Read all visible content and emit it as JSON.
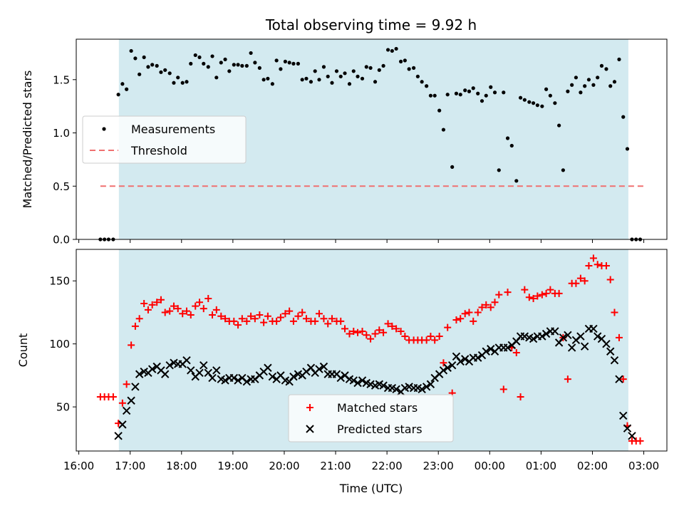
{
  "chart_data": [
    {
      "type": "scatter",
      "title": "Total observing time = 9.92 h",
      "ylabel": "Matched/Predicted stars",
      "xlabel": "",
      "xlim": [
        15.95,
        27.45
      ],
      "ylim": [
        0,
        1.88
      ],
      "yticks": [
        0.0,
        0.5,
        1.0,
        1.5
      ],
      "ytick_labels": [
        "0.0",
        "0.5",
        "1.0",
        "1.5"
      ],
      "shaded_interval": [
        16.78,
        26.7
      ],
      "shade_color": "#d3eaf0",
      "grid": false,
      "legend_position": "center-left",
      "series": [
        {
          "name": "Measurements",
          "style": "point",
          "color": "#000000",
          "x": [
            16.42,
            16.5,
            16.58,
            16.67,
            16.77,
            16.85,
            16.93,
            17.02,
            17.1,
            17.18,
            17.27,
            17.35,
            17.43,
            17.52,
            17.6,
            17.68,
            17.77,
            17.85,
            17.93,
            18.02,
            18.1,
            18.18,
            18.27,
            18.35,
            18.43,
            18.52,
            18.6,
            18.68,
            18.77,
            18.85,
            18.93,
            19.02,
            19.1,
            19.18,
            19.27,
            19.35,
            19.43,
            19.52,
            19.6,
            19.68,
            19.77,
            19.85,
            19.93,
            20.02,
            20.1,
            20.18,
            20.27,
            20.35,
            20.43,
            20.52,
            20.6,
            20.68,
            20.77,
            20.85,
            20.93,
            21.02,
            21.1,
            21.18,
            21.27,
            21.35,
            21.43,
            21.52,
            21.6,
            21.68,
            21.77,
            21.85,
            21.93,
            22.02,
            22.1,
            22.18,
            22.27,
            22.35,
            22.43,
            22.52,
            22.6,
            22.68,
            22.77,
            22.85,
            22.93,
            23.02,
            23.1,
            23.18,
            23.27,
            23.35,
            23.43,
            23.52,
            23.6,
            23.68,
            23.77,
            23.85,
            23.93,
            24.02,
            24.1,
            24.18,
            24.27,
            24.35,
            24.43,
            24.52,
            24.6,
            24.68,
            24.77,
            24.85,
            24.93,
            25.02,
            25.1,
            25.18,
            25.27,
            25.35,
            25.43,
            25.52,
            25.6,
            25.68,
            25.77,
            25.85,
            25.93,
            26.02,
            26.1,
            26.18,
            26.27,
            26.35,
            26.43,
            26.52,
            26.6,
            26.68,
            26.77,
            26.85,
            26.93
          ],
          "y": [
            0,
            0,
            0,
            0,
            1.36,
            1.46,
            1.41,
            1.77,
            1.7,
            1.55,
            1.71,
            1.62,
            1.64,
            1.63,
            1.57,
            1.59,
            1.56,
            1.47,
            1.52,
            1.47,
            1.48,
            1.65,
            1.73,
            1.71,
            1.65,
            1.62,
            1.72,
            1.52,
            1.66,
            1.69,
            1.58,
            1.64,
            1.64,
            1.63,
            1.63,
            1.75,
            1.66,
            1.61,
            1.5,
            1.51,
            1.46,
            1.68,
            1.6,
            1.67,
            1.66,
            1.65,
            1.65,
            1.5,
            1.51,
            1.48,
            1.58,
            1.5,
            1.62,
            1.53,
            1.47,
            1.58,
            1.53,
            1.56,
            1.46,
            1.58,
            1.53,
            1.51,
            1.62,
            1.61,
            1.48,
            1.59,
            1.63,
            1.78,
            1.77,
            1.79,
            1.67,
            1.68,
            1.6,
            1.61,
            1.53,
            1.48,
            1.44,
            1.35,
            1.35,
            1.21,
            1.03,
            1.36,
            0.68,
            1.37,
            1.36,
            1.4,
            1.39,
            1.42,
            1.37,
            1.3,
            1.35,
            1.43,
            1.38,
            0.65,
            1.38,
            0.95,
            0.88,
            0.55,
            1.33,
            1.31,
            1.29,
            1.28,
            1.26,
            1.25,
            1.41,
            1.35,
            1.28,
            1.07,
            0.65,
            1.39,
            1.45,
            1.52,
            1.38,
            1.44,
            1.5,
            1.45,
            1.52,
            1.63,
            1.6,
            1.44,
            1.48,
            1.69,
            1.15,
            0.85,
            0,
            0,
            0
          ]
        },
        {
          "name": "Threshold",
          "style": "dashed-line",
          "color": "#f07070",
          "x": [
            16.42,
            27.0
          ],
          "y": [
            0.5,
            0.5
          ]
        }
      ]
    },
    {
      "type": "scatter",
      "title": "",
      "ylabel": "Count",
      "xlabel": "Time (UTC)",
      "xlim": [
        15.95,
        27.45
      ],
      "ylim": [
        15,
        175
      ],
      "yticks": [
        50,
        100,
        150
      ],
      "ytick_labels": [
        "50",
        "100",
        "150"
      ],
      "xticks": [
        16,
        17,
        18,
        19,
        20,
        21,
        22,
        23,
        24,
        25,
        26,
        27
      ],
      "xtick_labels": [
        "16:00",
        "17:00",
        "18:00",
        "19:00",
        "20:00",
        "21:00",
        "22:00",
        "23:00",
        "00:00",
        "01:00",
        "02:00",
        "03:00"
      ],
      "shaded_interval": [
        16.78,
        26.7
      ],
      "shade_color": "#d3eaf0",
      "grid": false,
      "legend_position": "bottom-center",
      "series": [
        {
          "name": "Matched stars",
          "style": "plus",
          "color": "#ff0000",
          "x": [
            16.42,
            16.5,
            16.58,
            16.67,
            16.77,
            16.85,
            16.93,
            17.02,
            17.1,
            17.18,
            17.27,
            17.35,
            17.43,
            17.52,
            17.6,
            17.68,
            17.77,
            17.85,
            17.93,
            18.02,
            18.1,
            18.18,
            18.27,
            18.35,
            18.43,
            18.52,
            18.6,
            18.68,
            18.77,
            18.85,
            18.93,
            19.02,
            19.1,
            19.18,
            19.27,
            19.35,
            19.43,
            19.52,
            19.6,
            19.68,
            19.77,
            19.85,
            19.93,
            20.02,
            20.1,
            20.18,
            20.27,
            20.35,
            20.43,
            20.52,
            20.6,
            20.68,
            20.77,
            20.85,
            20.93,
            21.02,
            21.1,
            21.18,
            21.27,
            21.35,
            21.43,
            21.52,
            21.6,
            21.68,
            21.77,
            21.85,
            21.93,
            22.02,
            22.1,
            22.18,
            22.27,
            22.35,
            22.43,
            22.52,
            22.6,
            22.68,
            22.77,
            22.85,
            22.93,
            23.02,
            23.1,
            23.18,
            23.27,
            23.35,
            23.43,
            23.52,
            23.6,
            23.68,
            23.77,
            23.85,
            23.93,
            24.02,
            24.1,
            24.18,
            24.27,
            24.35,
            24.43,
            24.52,
            24.6,
            24.68,
            24.77,
            24.85,
            24.93,
            25.02,
            25.1,
            25.18,
            25.27,
            25.35,
            25.43,
            25.52,
            25.6,
            25.68,
            25.77,
            25.85,
            25.93,
            26.02,
            26.1,
            26.18,
            26.27,
            26.35,
            26.43,
            26.52,
            26.6,
            26.68,
            26.77,
            26.85,
            26.93
          ],
          "y": [
            58,
            58,
            58,
            58,
            37,
            53,
            68,
            99,
            114,
            120,
            132,
            127,
            131,
            133,
            135,
            125,
            126,
            130,
            128,
            124,
            126,
            123,
            130,
            133,
            128,
            136,
            123,
            127,
            122,
            120,
            118,
            118,
            115,
            120,
            118,
            122,
            120,
            123,
            117,
            122,
            118,
            118,
            121,
            124,
            126,
            118,
            122,
            125,
            120,
            118,
            118,
            124,
            120,
            116,
            120,
            118,
            118,
            112,
            108,
            110,
            109,
            110,
            107,
            104,
            108,
            111,
            109,
            116,
            114,
            112,
            110,
            106,
            103,
            103,
            103,
            103,
            103,
            106,
            103,
            106,
            85,
            113,
            61,
            119,
            120,
            124,
            125,
            118,
            125,
            129,
            131,
            129,
            133,
            139,
            64,
            141,
            97,
            93,
            58,
            143,
            137,
            136,
            138,
            139,
            140,
            143,
            140,
            140,
            105,
            72,
            148,
            148,
            152,
            150,
            162,
            168,
            163,
            162,
            162,
            151,
            125,
            105,
            72,
            35,
            23,
            23,
            23
          ]
        },
        {
          "name": "Predicted stars",
          "style": "x",
          "color": "#000000",
          "x": [
            16.77,
            16.85,
            16.93,
            17.02,
            17.1,
            17.18,
            17.27,
            17.35,
            17.43,
            17.52,
            17.6,
            17.68,
            17.77,
            17.85,
            17.93,
            18.02,
            18.1,
            18.18,
            18.27,
            18.35,
            18.43,
            18.52,
            18.6,
            18.68,
            18.77,
            18.85,
            18.93,
            19.02,
            19.1,
            19.18,
            19.27,
            19.35,
            19.43,
            19.52,
            19.6,
            19.68,
            19.77,
            19.85,
            19.93,
            20.02,
            20.1,
            20.18,
            20.27,
            20.35,
            20.43,
            20.52,
            20.6,
            20.68,
            20.77,
            20.85,
            20.93,
            21.02,
            21.1,
            21.18,
            21.27,
            21.35,
            21.43,
            21.52,
            21.6,
            21.68,
            21.77,
            21.85,
            21.93,
            22.02,
            22.1,
            22.18,
            22.27,
            22.35,
            22.43,
            22.52,
            22.6,
            22.68,
            22.77,
            22.85,
            22.93,
            23.02,
            23.1,
            23.18,
            23.27,
            23.35,
            23.43,
            23.52,
            23.6,
            23.68,
            23.77,
            23.85,
            23.93,
            24.02,
            24.1,
            24.18,
            24.27,
            24.35,
            24.43,
            24.52,
            24.6,
            24.68,
            24.77,
            24.85,
            24.93,
            25.02,
            25.1,
            25.18,
            25.27,
            25.35,
            25.43,
            25.52,
            25.6,
            25.68,
            25.77,
            25.85,
            25.93,
            26.02,
            26.1,
            26.18,
            26.27,
            26.35,
            26.43,
            26.52,
            26.6,
            26.68,
            26.77
          ],
          "y": [
            27,
            36,
            47,
            55,
            66,
            76,
            78,
            77,
            80,
            82,
            79,
            76,
            83,
            85,
            84,
            84,
            87,
            79,
            74,
            77,
            83,
            77,
            73,
            79,
            72,
            71,
            73,
            73,
            71,
            73,
            70,
            72,
            72,
            75,
            78,
            81,
            74,
            72,
            75,
            71,
            70,
            74,
            76,
            75,
            78,
            81,
            77,
            80,
            82,
            76,
            76,
            76,
            73,
            75,
            72,
            71,
            69,
            71,
            69,
            68,
            67,
            68,
            67,
            65,
            65,
            64,
            62,
            65,
            66,
            65,
            65,
            64,
            66,
            68,
            73,
            76,
            79,
            81,
            83,
            90,
            86,
            88,
            86,
            89,
            89,
            91,
            94,
            96,
            94,
            97,
            97,
            97,
            99,
            102,
            106,
            106,
            105,
            104,
            106,
            106,
            108,
            110,
            110,
            101,
            105,
            107,
            97,
            103,
            106,
            98,
            112,
            112,
            106,
            104,
            100,
            94,
            87,
            72,
            43,
            33,
            27
          ]
        }
      ]
    }
  ]
}
